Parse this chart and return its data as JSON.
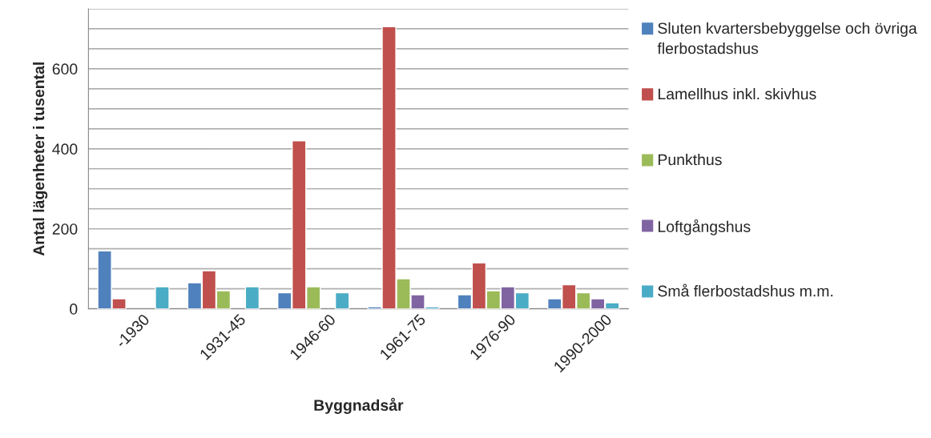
{
  "chart_data": {
    "type": "bar",
    "xlabel": "Byggnadsår",
    "ylabel": "Antal lägenheter i tusental",
    "categories": [
      "-1930",
      "1931-45",
      "1946-60",
      "1961-75",
      "1976-90",
      "1990-2000"
    ],
    "series": [
      {
        "name": "Sluten kvartersbebyggelse och övriga flerbostadshus",
        "color": "#4f81bd",
        "values": [
          145,
          65,
          40,
          5,
          35,
          25
        ]
      },
      {
        "name": "Lamellhus inkl. skivhus",
        "color": "#c0504d",
        "values": [
          25,
          95,
          420,
          705,
          115,
          60
        ]
      },
      {
        "name": "Punkthus",
        "color": "#9bbb59",
        "values": [
          null,
          45,
          55,
          75,
          45,
          40
        ]
      },
      {
        "name": "Loftgångshus",
        "color": "#8064a2",
        "values": [
          null,
          null,
          null,
          35,
          55,
          25
        ]
      },
      {
        "name": "Små flerbostadshus m.m.",
        "color": "#4bacc6",
        "values": [
          55,
          55,
          40,
          5,
          40,
          15
        ]
      }
    ],
    "ylim": [
      0,
      750
    ],
    "yticks": [
      0,
      {
        "value": 50,
        "label": null
      },
      {
        "value": 100,
        "label": null
      },
      {
        "value": 150,
        "label": null
      },
      200,
      {
        "value": 250,
        "label": null
      },
      {
        "value": 300,
        "label": null
      },
      {
        "value": 350,
        "label": null
      },
      400,
      {
        "value": 450,
        "label": null
      },
      {
        "value": 500,
        "label": null
      },
      {
        "value": 550,
        "label": null
      },
      600,
      {
        "value": 650,
        "label": null
      },
      {
        "value": 700,
        "label": null
      },
      {
        "value": 750,
        "label": null
      }
    ],
    "grid": "y",
    "legend": "right"
  }
}
